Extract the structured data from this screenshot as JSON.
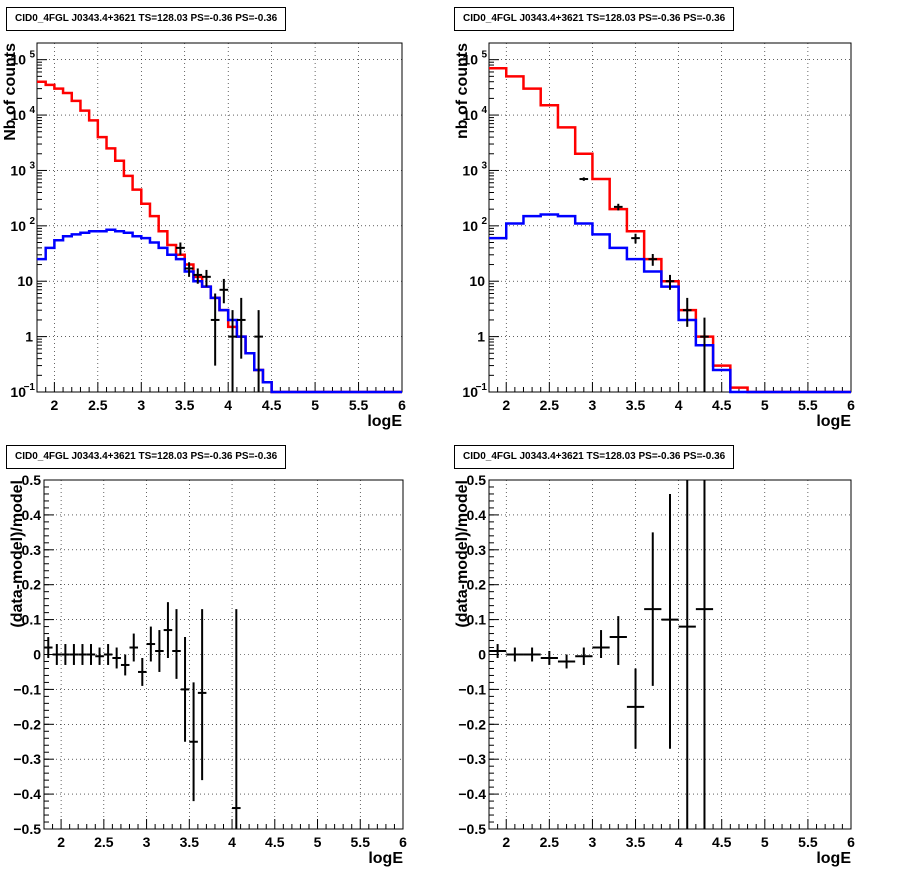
{
  "chart_data": [
    {
      "type": "step-histogram",
      "title": "CID0_4FGL J0343.4+3621 TS=128.03 PS=-0.36 PS=-0.36",
      "xlabel": "logE",
      "ylabel": "Nb of counts",
      "xlim": [
        1.8,
        6.0
      ],
      "ylim": [
        0.1,
        200000
      ],
      "yscale": "log",
      "grid": true,
      "xticks": [
        "2",
        "2.5",
        "3",
        "3.5",
        "4",
        "4.5",
        "5",
        "5.5",
        "6"
      ],
      "yticks": [
        {
          "v": 0.1,
          "label": "10",
          "sup": "−1"
        },
        {
          "v": 1,
          "label": "1",
          "sup": ""
        },
        {
          "v": 10,
          "label": "10",
          "sup": ""
        },
        {
          "v": 100,
          "label": "10",
          "sup": "2"
        },
        {
          "v": 1000,
          "label": "10",
          "sup": "3"
        },
        {
          "v": 10000,
          "label": "10",
          "sup": "4"
        },
        {
          "v": 100000,
          "label": "10",
          "sup": "5"
        }
      ],
      "bin_edges": [
        1.8,
        1.9,
        2.0,
        2.1,
        2.2,
        2.3,
        2.4,
        2.5,
        2.6,
        2.7,
        2.8,
        2.9,
        3.0,
        3.1,
        3.2,
        3.3,
        3.4,
        3.5,
        3.6,
        3.7,
        3.8,
        3.9,
        4.0,
        4.1,
        4.2,
        4.3,
        4.4,
        4.5,
        4.6,
        4.7,
        4.8,
        4.9,
        5.0,
        5.1,
        5.2,
        5.3,
        5.4,
        5.5,
        5.6,
        5.7,
        5.8,
        5.9,
        6.0
      ],
      "series": [
        {
          "color": "#ff0000",
          "values": [
            40000,
            35000,
            30000,
            25000,
            18000,
            12000,
            8000,
            4000,
            2500,
            1500,
            800,
            450,
            250,
            150,
            80,
            45,
            30,
            20,
            12,
            8,
            5,
            3,
            1.5,
            1,
            0.5,
            0.25,
            0.15,
            0.1,
            0.1,
            0.1,
            0.1,
            0.1,
            0.1,
            0.1,
            0.1,
            0.1,
            0.1,
            0.1,
            0.1,
            0.1,
            0.1,
            0.1
          ]
        },
        {
          "color": "#0000ff",
          "values": [
            25,
            40,
            55,
            65,
            70,
            75,
            80,
            80,
            85,
            80,
            75,
            65,
            60,
            50,
            40,
            30,
            25,
            15,
            10,
            8,
            5,
            3,
            2,
            1,
            0.5,
            0.25,
            0.15,
            0.1,
            0.1,
            0.1,
            0.1,
            0.1,
            0.1,
            0.1,
            0.1,
            0.1,
            0.1,
            0.1,
            0.1,
            0.1,
            0.1,
            0.1
          ]
        }
      ],
      "points": [
        {
          "x": 3.45,
          "y": 40,
          "lo": 30,
          "hi": 50
        },
        {
          "x": 3.55,
          "y": 17,
          "lo": 12,
          "hi": 22
        },
        {
          "x": 3.65,
          "y": 13,
          "lo": 9,
          "hi": 17
        },
        {
          "x": 3.75,
          "y": 12,
          "lo": 8,
          "hi": 16
        },
        {
          "x": 3.85,
          "y": 2,
          "lo": 0.3,
          "hi": 6
        },
        {
          "x": 3.95,
          "y": 7,
          "lo": 4,
          "hi": 11
        },
        {
          "x": 4.05,
          "y": 1,
          "lo": 0.1,
          "hi": 3
        },
        {
          "x": 4.15,
          "y": 2,
          "lo": 0.4,
          "hi": 5
        },
        {
          "x": 4.35,
          "y": 1,
          "lo": 0.1,
          "hi": 3
        }
      ]
    },
    {
      "type": "step-histogram",
      "title": "CID0_4FGL J0343.4+3621 TS=128.03 PS=-0.36 PS=-0.36",
      "xlabel": "logE",
      "ylabel": "nb of counts",
      "xlim": [
        1.8,
        6.0
      ],
      "ylim": [
        0.1,
        200000
      ],
      "yscale": "log",
      "grid": true,
      "xticks": [
        "2",
        "2.5",
        "3",
        "3.5",
        "4",
        "4.5",
        "5",
        "5.5",
        "6"
      ],
      "yticks": [
        {
          "v": 0.1,
          "label": "10",
          "sup": "−1"
        },
        {
          "v": 1,
          "label": "1",
          "sup": ""
        },
        {
          "v": 10,
          "label": "10",
          "sup": ""
        },
        {
          "v": 100,
          "label": "10",
          "sup": "2"
        },
        {
          "v": 1000,
          "label": "10",
          "sup": "3"
        },
        {
          "v": 10000,
          "label": "10",
          "sup": "4"
        },
        {
          "v": 100000,
          "label": "10",
          "sup": "5"
        }
      ],
      "bin_edges": [
        1.8,
        2.0,
        2.2,
        2.4,
        2.6,
        2.8,
        3.0,
        3.2,
        3.4,
        3.6,
        3.8,
        4.0,
        4.2,
        4.4,
        4.6,
        4.8,
        5.0,
        5.2,
        5.4,
        5.6,
        5.8,
        6.0
      ],
      "series": [
        {
          "color": "#ff0000",
          "values": [
            70000,
            50000,
            30000,
            15000,
            6000,
            2000,
            700,
            200,
            80,
            25,
            10,
            3,
            1,
            0.3,
            0.12,
            0.1,
            0.1,
            0.1,
            0.1,
            0.1,
            0.1
          ]
        },
        {
          "color": "#0000ff",
          "values": [
            60,
            110,
            150,
            160,
            150,
            110,
            70,
            40,
            25,
            15,
            8,
            2,
            0.7,
            0.25,
            0.1,
            0.1,
            0.1,
            0.1,
            0.1,
            0.1,
            0.1
          ]
        }
      ],
      "points": [
        {
          "x": 2.9,
          "y": 700,
          "lo": 650,
          "hi": 750
        },
        {
          "x": 3.3,
          "y": 220,
          "lo": 190,
          "hi": 250
        },
        {
          "x": 3.5,
          "y": 60,
          "lo": 48,
          "hi": 72
        },
        {
          "x": 3.7,
          "y": 25,
          "lo": 19,
          "hi": 31
        },
        {
          "x": 3.9,
          "y": 10,
          "lo": 7,
          "hi": 13
        },
        {
          "x": 4.1,
          "y": 3,
          "lo": 1.5,
          "hi": 5
        },
        {
          "x": 4.3,
          "y": 1,
          "lo": 0.1,
          "hi": 2.2
        }
      ]
    },
    {
      "type": "scatter-errorbars",
      "title": "CID0_4FGL J0343.4+3621 TS=128.03 PS=-0.36 PS=-0.36",
      "xlabel": "logE",
      "ylabel": "(data-model)/model",
      "xlim": [
        1.8,
        6.0
      ],
      "ylim": [
        -0.5,
        0.5
      ],
      "yscale": "linear",
      "grid": true,
      "xticks": [
        "2",
        "2.5",
        "3",
        "3.5",
        "4",
        "4.5",
        "5",
        "5.5",
        "6"
      ],
      "yticks": [
        "−0.5",
        "−0.4",
        "−0.3",
        "−0.2",
        "−0.1",
        "0",
        "0.1",
        "0.2",
        "0.3",
        "0.4",
        "0.5"
      ],
      "xerr": 0.05,
      "points": [
        {
          "x": 1.85,
          "y": 0.02,
          "lo": -0.01,
          "hi": 0.05
        },
        {
          "x": 1.95,
          "y": 0.0,
          "lo": -0.03,
          "hi": 0.03
        },
        {
          "x": 2.05,
          "y": 0.0,
          "lo": -0.03,
          "hi": 0.03
        },
        {
          "x": 2.15,
          "y": 0.0,
          "lo": -0.03,
          "hi": 0.03
        },
        {
          "x": 2.25,
          "y": 0.0,
          "lo": -0.03,
          "hi": 0.03
        },
        {
          "x": 2.35,
          "y": 0.0,
          "lo": -0.03,
          "hi": 0.03
        },
        {
          "x": 2.45,
          "y": -0.005,
          "lo": -0.03,
          "hi": 0.02
        },
        {
          "x": 2.55,
          "y": 0.0,
          "lo": -0.03,
          "hi": 0.03
        },
        {
          "x": 2.65,
          "y": -0.01,
          "lo": -0.04,
          "hi": 0.02
        },
        {
          "x": 2.75,
          "y": -0.03,
          "lo": -0.06,
          "hi": 0.0
        },
        {
          "x": 2.85,
          "y": 0.02,
          "lo": -0.02,
          "hi": 0.06
        },
        {
          "x": 2.95,
          "y": -0.05,
          "lo": -0.09,
          "hi": -0.01
        },
        {
          "x": 3.05,
          "y": 0.03,
          "lo": -0.02,
          "hi": 0.08
        },
        {
          "x": 3.15,
          "y": 0.01,
          "lo": -0.05,
          "hi": 0.07
        },
        {
          "x": 3.25,
          "y": 0.07,
          "lo": -0.01,
          "hi": 0.15
        },
        {
          "x": 3.35,
          "y": 0.01,
          "lo": -0.07,
          "hi": 0.13
        },
        {
          "x": 3.45,
          "y": -0.1,
          "lo": -0.25,
          "hi": 0.05
        },
        {
          "x": 3.55,
          "y": -0.25,
          "lo": -0.42,
          "hi": -0.08
        },
        {
          "x": 3.65,
          "y": -0.11,
          "lo": -0.36,
          "hi": 0.13
        },
        {
          "x": 4.05,
          "y": -0.44,
          "lo": -0.5,
          "hi": 0.13
        }
      ]
    },
    {
      "type": "scatter-errorbars",
      "title": "CID0_4FGL J0343.4+3621 TS=128.03 PS=-0.36 PS=-0.36",
      "xlabel": "logE",
      "ylabel": "(data-model)/model",
      "xlim": [
        1.8,
        6.0
      ],
      "ylim": [
        -0.5,
        0.5
      ],
      "yscale": "linear",
      "grid": true,
      "xticks": [
        "2",
        "2.5",
        "3",
        "3.5",
        "4",
        "4.5",
        "5",
        "5.5",
        "6"
      ],
      "yticks": [
        "−0.5",
        "−0.4",
        "−0.3",
        "−0.2",
        "−0.1",
        "0",
        "0.1",
        "0.2",
        "0.3",
        "0.4",
        "0.5"
      ],
      "xerr": 0.1,
      "points": [
        {
          "x": 1.9,
          "y": 0.01,
          "lo": -0.01,
          "hi": 0.03
        },
        {
          "x": 2.1,
          "y": 0.0,
          "lo": -0.02,
          "hi": 0.02
        },
        {
          "x": 2.3,
          "y": 0.0,
          "lo": -0.02,
          "hi": 0.02
        },
        {
          "x": 2.5,
          "y": -0.01,
          "lo": -0.03,
          "hi": 0.01
        },
        {
          "x": 2.7,
          "y": -0.02,
          "lo": -0.04,
          "hi": 0.0
        },
        {
          "x": 2.9,
          "y": -0.005,
          "lo": -0.03,
          "hi": 0.02
        },
        {
          "x": 3.1,
          "y": 0.02,
          "lo": -0.01,
          "hi": 0.07
        },
        {
          "x": 3.3,
          "y": 0.05,
          "lo": -0.03,
          "hi": 0.11
        },
        {
          "x": 3.5,
          "y": -0.15,
          "lo": -0.27,
          "hi": -0.04
        },
        {
          "x": 3.7,
          "y": 0.13,
          "lo": -0.09,
          "hi": 0.35
        },
        {
          "x": 3.9,
          "y": 0.1,
          "lo": -0.27,
          "hi": 0.46
        },
        {
          "x": 4.1,
          "y": 0.08,
          "lo": -0.5,
          "hi": 0.5
        },
        {
          "x": 4.3,
          "y": 0.13,
          "lo": -0.5,
          "hi": 0.5
        }
      ]
    }
  ]
}
